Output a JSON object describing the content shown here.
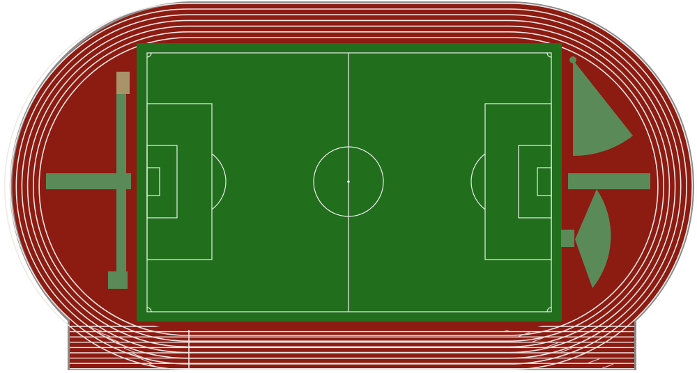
{
  "colors": {
    "background": "#ffffff",
    "track": "#8c1b12",
    "track_outline": "#8a8a8a",
    "lane_line": "#f2e8e6",
    "field": "#216e1d",
    "field_line": "#f0f0f0",
    "event_area": "#5b8a59",
    "pit": "#a89468"
  },
  "track": {
    "lanes": 6,
    "straight_lanes": 8
  },
  "field": {
    "type": "football-pitch"
  },
  "events": [
    {
      "name": "long-jump-runway-left"
    },
    {
      "name": "long-jump-pit"
    },
    {
      "name": "javelin-runway-left"
    },
    {
      "name": "javelin-runway-right"
    },
    {
      "name": "shot-put-sector"
    },
    {
      "name": "discus-sector"
    }
  ]
}
